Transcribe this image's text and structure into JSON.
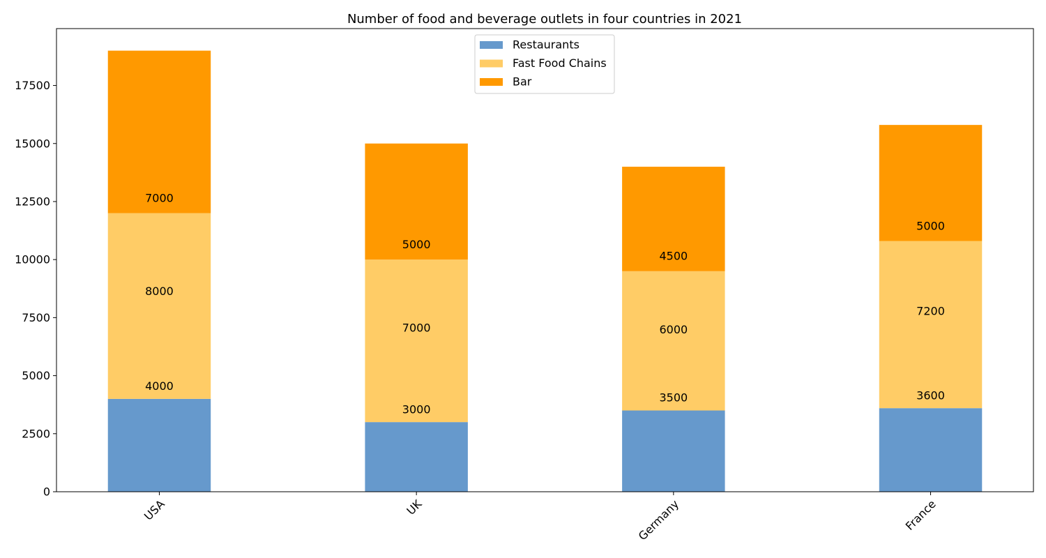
{
  "chart_data": {
    "type": "bar",
    "stacked": true,
    "title": "Number of food and beverage outlets in four countries in 2021",
    "xlabel": "",
    "ylabel": "",
    "categories": [
      "USA",
      "UK",
      "Germany",
      "France"
    ],
    "series": [
      {
        "name": "Restaurants",
        "values": [
          4000,
          3000,
          3500,
          3600
        ],
        "color": "#6699cc"
      },
      {
        "name": "Fast Food Chains",
        "values": [
          8000,
          7000,
          6000,
          7200
        ],
        "color": "#ffcc66"
      },
      {
        "name": "Bar",
        "values": [
          7000,
          5000,
          4500,
          5000
        ],
        "color": "#ff9900"
      }
    ],
    "ylim": [
      0,
      19950
    ],
    "yticks": [
      0,
      2500,
      5000,
      7500,
      10000,
      12500,
      15000,
      17500
    ],
    "legend_position": "top-center",
    "grid": false,
    "xtick_rotation": 45
  }
}
